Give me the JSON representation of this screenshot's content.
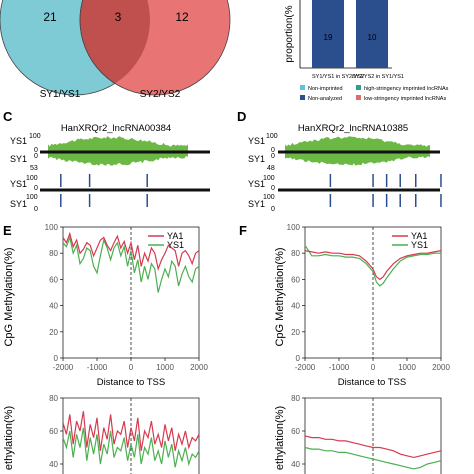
{
  "venn": {
    "left_count": "21",
    "center_count": "3",
    "right_count": "12",
    "left_label": "SY1/YS1",
    "right_label": "SY2/YS2",
    "left_color": "#7ecbd6",
    "right_color": "#e87574",
    "overlap_color": "#c0504d"
  },
  "proportion": {
    "ylabel": "proportion(%",
    "bars": [
      {
        "category": "SY1/YS1 in SY2/YS2",
        "value_label": "19"
      },
      {
        "category": "SY2/YS2 in SY1/YS1",
        "value_label": "10"
      }
    ],
    "bar_color": "#2b4e8c",
    "legend": [
      {
        "label": "Non-imprinted",
        "color": "#5bc5e0"
      },
      {
        "label": "high-stringency imprinted lncRNAs",
        "color": "#2e9e8f"
      },
      {
        "label": "Non-analyzed",
        "color": "#2b4e8c"
      },
      {
        "label": "low-stringency imprinted lncRNAs",
        "color": "#e06d6d"
      }
    ]
  },
  "panel_c": {
    "letter": "C",
    "title": "HanXRQr2_lncRNA00384",
    "track_labels": [
      "YS1",
      "SY1",
      "YS1",
      "SY1"
    ],
    "top_axis": [
      "100",
      "0",
      "0",
      "53"
    ],
    "bottom_axis": [
      "100",
      "0",
      "100",
      "0"
    ],
    "cpg_positions": [
      0.06,
      0.22,
      0.54
    ]
  },
  "panel_d": {
    "letter": "D",
    "title": "HanXRQr2_lncRNA10385",
    "track_labels": [
      "YS1",
      "SY1",
      "YS1",
      "SY1"
    ],
    "top_axis": [
      "100",
      "0",
      "0",
      "48"
    ],
    "bottom_axis": [
      "100",
      "0",
      "100",
      "0"
    ],
    "cpg_positions": [
      0.27,
      0.49,
      0.56,
      0.63,
      0.71,
      0.84
    ]
  },
  "chart_data": [
    {
      "panel": "E",
      "type": "line",
      "ylabel": "CpG Methylation(%)",
      "xlabel": "Distance to TSS",
      "xlim": [
        -2000,
        2000
      ],
      "ylim": [
        0,
        100
      ],
      "xticks": [
        "-2000",
        "-1000",
        "0",
        "1000",
        "2000"
      ],
      "yticks": [
        "0",
        "20",
        "40",
        "60",
        "80",
        "100"
      ],
      "legend_position": "top-right",
      "series": [
        {
          "name": "YA1",
          "color": "#d63a4f",
          "x": [
            -2000,
            -1900,
            -1800,
            -1700,
            -1600,
            -1500,
            -1400,
            -1300,
            -1200,
            -1100,
            -1000,
            -900,
            -800,
            -700,
            -600,
            -500,
            -400,
            -300,
            -200,
            -100,
            0,
            100,
            200,
            300,
            400,
            500,
            600,
            700,
            800,
            900,
            1000,
            1100,
            1200,
            1300,
            1400,
            1500,
            1600,
            1700,
            1800,
            1900,
            2000
          ],
          "values": [
            92,
            88,
            95,
            85,
            90,
            80,
            83,
            88,
            86,
            78,
            84,
            90,
            92,
            86,
            82,
            88,
            93,
            84,
            89,
            80,
            88,
            75,
            86,
            70,
            80,
            74,
            84,
            80,
            68,
            75,
            80,
            86,
            84,
            82,
            70,
            80,
            82,
            78,
            72,
            80,
            82
          ]
        },
        {
          "name": "YS1",
          "color": "#4caf50",
          "x": [
            -2000,
            -1900,
            -1800,
            -1700,
            -1600,
            -1500,
            -1400,
            -1300,
            -1200,
            -1100,
            -1000,
            -900,
            -800,
            -700,
            -600,
            -500,
            -400,
            -300,
            -200,
            -100,
            0,
            100,
            200,
            300,
            400,
            500,
            600,
            700,
            800,
            900,
            1000,
            1100,
            1200,
            1300,
            1400,
            1500,
            1600,
            1700,
            1800,
            1900,
            2000
          ],
          "values": [
            88,
            85,
            92,
            80,
            86,
            72,
            76,
            84,
            82,
            70,
            65,
            78,
            90,
            84,
            75,
            84,
            88,
            78,
            85,
            70,
            82,
            65,
            75,
            58,
            70,
            60,
            72,
            68,
            50,
            60,
            68,
            62,
            74,
            70,
            55,
            64,
            70,
            62,
            58,
            68,
            70
          ]
        }
      ]
    },
    {
      "panel": "F",
      "type": "line",
      "ylabel": "CpG Methylation(%)",
      "xlabel": "Distance to TSS",
      "xlim": [
        -2000,
        2000
      ],
      "ylim": [
        0,
        100
      ],
      "xticks": [
        "-2000",
        "-1000",
        "0",
        "1000",
        "2000"
      ],
      "yticks": [
        "0",
        "20",
        "40",
        "60",
        "80",
        "100"
      ],
      "legend_position": "top-right",
      "series": [
        {
          "name": "YA1",
          "color": "#d63a4f",
          "x": [
            -2000,
            -1800,
            -1600,
            -1400,
            -1200,
            -1000,
            -800,
            -600,
            -400,
            -200,
            0,
            100,
            200,
            300,
            400,
            600,
            800,
            1000,
            1200,
            1400,
            1600,
            1800,
            2000
          ],
          "values": [
            82,
            81,
            80,
            81,
            80,
            80,
            79,
            79,
            78,
            74,
            68,
            62,
            60,
            62,
            66,
            72,
            76,
            78,
            79,
            80,
            80,
            81,
            82
          ]
        },
        {
          "name": "YS1",
          "color": "#4caf50",
          "x": [
            -2000,
            -1800,
            -1600,
            -1400,
            -1200,
            -1000,
            -800,
            -600,
            -400,
            -200,
            0,
            100,
            200,
            300,
            400,
            600,
            800,
            1000,
            1200,
            1400,
            1600,
            1800,
            2000
          ],
          "values": [
            86,
            78,
            78,
            79,
            78,
            78,
            77,
            77,
            76,
            72,
            66,
            58,
            55,
            57,
            61,
            68,
            74,
            77,
            78,
            79,
            79,
            80,
            80
          ]
        }
      ]
    },
    {
      "panel": "E-lower",
      "type": "line",
      "ylabel": "ethylation(%)",
      "xlim": [
        -2000,
        2000
      ],
      "ylim": [
        0,
        100
      ],
      "series": [
        {
          "name": "",
          "color": "#d63a4f",
          "values": [
            65,
            58,
            70,
            52,
            66,
            60,
            72,
            50,
            64,
            56,
            68,
            48,
            62,
            55,
            70,
            52,
            60,
            58,
            66,
            50,
            62,
            54,
            68,
            48,
            60,
            56,
            66,
            52,
            58,
            50,
            64,
            54,
            62,
            48,
            58,
            52,
            60,
            50,
            56,
            54,
            58
          ]
        },
        {
          "name": "",
          "color": "#4caf50",
          "values": [
            56,
            50,
            60,
            44,
            58,
            50,
            62,
            42,
            56,
            46,
            58,
            40,
            52,
            46,
            60,
            44,
            50,
            48,
            56,
            42,
            52,
            44,
            58,
            40,
            50,
            46,
            56,
            42,
            48,
            40,
            54,
            44,
            52,
            38,
            48,
            42,
            50,
            40,
            46,
            44,
            48
          ]
        }
      ]
    },
    {
      "panel": "F-lower",
      "type": "line",
      "ylabel": "ethylation(%)",
      "xlim": [
        -2000,
        2000
      ],
      "ylim": [
        0,
        100
      ],
      "series": [
        {
          "name": "",
          "color": "#d63a4f",
          "values": [
            57,
            56,
            56,
            55,
            55,
            54,
            54,
            53,
            52,
            51,
            50,
            50,
            49,
            48,
            46,
            45,
            44,
            45,
            46,
            47,
            48
          ]
        },
        {
          "name": "",
          "color": "#4caf50",
          "values": [
            50,
            49,
            49,
            48,
            48,
            47,
            47,
            46,
            45,
            44,
            43,
            42,
            41,
            40,
            39,
            38,
            37,
            38,
            40,
            41,
            42
          ]
        }
      ]
    }
  ]
}
